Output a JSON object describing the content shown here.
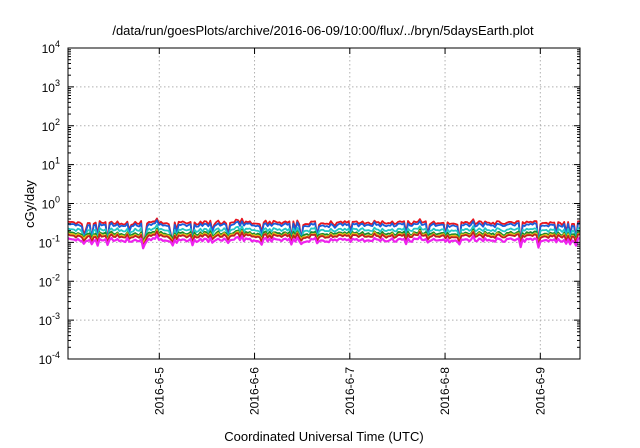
{
  "chart_data": {
    "type": "line",
    "title": "/data/run/goesPlots/archive/2016-06-09/10:00/flux/../bryn/5daysEarth.plot",
    "xlabel": "Coordinated Universal Time (UTC)",
    "ylabel": "cGy/day",
    "yscale": "log",
    "ylim": [
      0.0001,
      10000
    ],
    "xlim": [
      "2016-06-04 01:00",
      "2016-06-09 10:00"
    ],
    "grid": true,
    "x_ticks": [
      "2016-6-5",
      "2016-6-6",
      "2016-6-7",
      "2016-6-8",
      "2016-6-9"
    ],
    "y_ticks": [
      {
        "base": "10",
        "exp": "4"
      },
      {
        "base": "10",
        "exp": "3"
      },
      {
        "base": "10",
        "exp": "2"
      },
      {
        "base": "10",
        "exp": "1"
      },
      {
        "base": "10",
        "exp": "0"
      },
      {
        "base": "10",
        "exp": "-1"
      },
      {
        "base": "10",
        "exp": "-2"
      },
      {
        "base": "10",
        "exp": "-3"
      },
      {
        "base": "10",
        "exp": "-4"
      }
    ],
    "series": [
      {
        "color": "#e8141e",
        "level": 0.32,
        "dip": 0.11
      },
      {
        "color": "#1a5cd8",
        "level": 0.28,
        "dip": 0.1
      },
      {
        "color": "#22c7c7",
        "level": 0.21,
        "dip": 0.11
      },
      {
        "color": "#1a8a2a",
        "level": 0.17,
        "dip": 0.12
      },
      {
        "color": "#e6bd1a",
        "level": 0.155,
        "dip": 0.11
      },
      {
        "color": "#c02020",
        "level": 0.145,
        "dip": 0.1
      },
      {
        "color": "#ee22ee",
        "level": 0.115,
        "dip": 0.085
      }
    ]
  }
}
